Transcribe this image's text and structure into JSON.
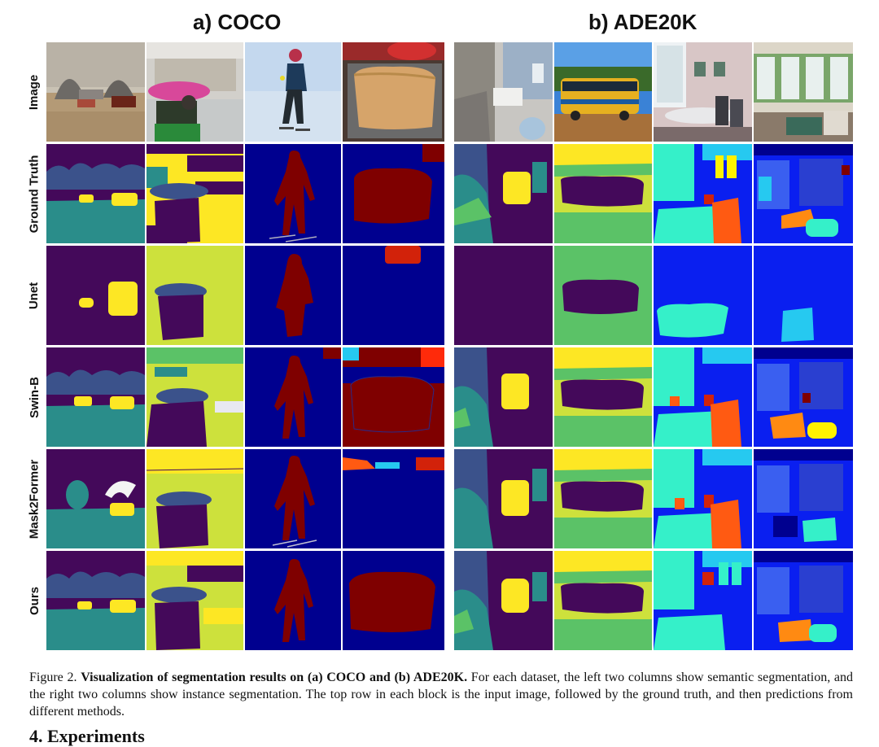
{
  "figure": {
    "panel_a_title": "a) COCO",
    "panel_b_title": "b) ADE20K",
    "row_labels": [
      "Image",
      "Ground Truth",
      "Unet",
      "Swin-B",
      "Mask2Former",
      "Ours"
    ],
    "caption_prefix": "Figure 2.",
    "caption_bold": "Visualization of segmentation results on (a) COCO and (b) ADE20K.",
    "caption_rest": "For each dataset, the left two columns show semantic segmentation, and the right two columns show instance segmentation. The top row in each block is the input image, followed by the ground truth, and then predictions from different methods.",
    "next_section": "4. Experiments"
  },
  "colors": {
    "viridis_dark": "#44095a",
    "viridis_blue": "#3b528b",
    "viridis_teal": "#2a8d8a",
    "viridis_green": "#5bc267",
    "viridis_yellow": "#fde724",
    "viridis_lime": "#cde13c",
    "jet_navy": "#00008f",
    "jet_blue": "#0a1ff0",
    "jet_cyan": "#26c9f0",
    "jet_aqua": "#35f0c9",
    "jet_yellow": "#fff200",
    "jet_orange": "#ff5a12",
    "jet_red": "#d2220a",
    "jet_maroon": "#7f0000"
  }
}
